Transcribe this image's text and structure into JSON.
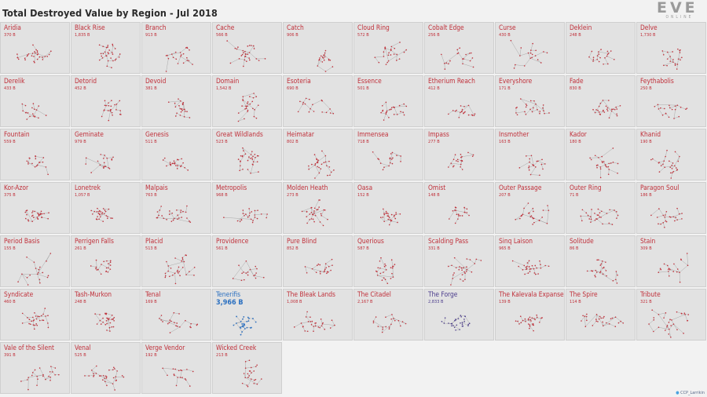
{
  "title": "Total Destroyed Value by Region - Jul 2018",
  "logo": {
    "word": "EVE",
    "sub": "ONLINE"
  },
  "credit": {
    "icon": "twitter-bird-icon",
    "text": "CCP_Larrikin"
  },
  "colors": {
    "default": "#c0303a",
    "tenerifis": "#2a6fc0",
    "the_forge": "#4b3c8c"
  },
  "chart_data": {
    "type": "small-multiples",
    "title": "Total Destroyed Value by Region - Jul 2018",
    "unit": "B",
    "regions": [
      {
        "name": "Aridia",
        "value": "370 B"
      },
      {
        "name": "Black Rise",
        "value": "1,835 B"
      },
      {
        "name": "Branch",
        "value": "913 B"
      },
      {
        "name": "Cache",
        "value": "566 B"
      },
      {
        "name": "Catch",
        "value": "906 B"
      },
      {
        "name": "Cloud Ring",
        "value": "572 B"
      },
      {
        "name": "Cobalt Edge",
        "value": "256 B"
      },
      {
        "name": "Curse",
        "value": "430 B"
      },
      {
        "name": "Deklein",
        "value": "248 B"
      },
      {
        "name": "Delve",
        "value": "1,730 B"
      },
      {
        "name": "Derelik",
        "value": "433 B"
      },
      {
        "name": "Detorid",
        "value": "452 B"
      },
      {
        "name": "Devoid",
        "value": "381 B"
      },
      {
        "name": "Domain",
        "value": "1,542 B"
      },
      {
        "name": "Esoteria",
        "value": "690 B"
      },
      {
        "name": "Essence",
        "value": "501 B"
      },
      {
        "name": "Etherium Reach",
        "value": "412 B"
      },
      {
        "name": "Everyshore",
        "value": "171 B"
      },
      {
        "name": "Fade",
        "value": "830 B"
      },
      {
        "name": "Feythabolis",
        "value": "250 B"
      },
      {
        "name": "Fountain",
        "value": "559 B"
      },
      {
        "name": "Geminate",
        "value": "979 B"
      },
      {
        "name": "Genesis",
        "value": "511 B"
      },
      {
        "name": "Great Wildlands",
        "value": "523 B"
      },
      {
        "name": "Heimatar",
        "value": "802 B"
      },
      {
        "name": "Immensea",
        "value": "718 B"
      },
      {
        "name": "Impass",
        "value": "277 B"
      },
      {
        "name": "Insmother",
        "value": "163 B"
      },
      {
        "name": "Kador",
        "value": "180 B"
      },
      {
        "name": "Khanid",
        "value": "190 B"
      },
      {
        "name": "Kor-Azor",
        "value": "375 B"
      },
      {
        "name": "Lonetrek",
        "value": "1,057 B"
      },
      {
        "name": "Malpais",
        "value": "763 B"
      },
      {
        "name": "Metropolis",
        "value": "968 B"
      },
      {
        "name": "Molden Heath",
        "value": "273 B"
      },
      {
        "name": "Oasa",
        "value": "152 B"
      },
      {
        "name": "Omist",
        "value": "148 B"
      },
      {
        "name": "Outer Passage",
        "value": "207 B"
      },
      {
        "name": "Outer Ring",
        "value": "71 B"
      },
      {
        "name": "Paragon Soul",
        "value": "186 B"
      },
      {
        "name": "Period Basis",
        "value": "155 B"
      },
      {
        "name": "Perrigen Falls",
        "value": "261 B"
      },
      {
        "name": "Placid",
        "value": "513 B"
      },
      {
        "name": "Providence",
        "value": "561 B"
      },
      {
        "name": "Pure Blind",
        "value": "852 B"
      },
      {
        "name": "Querious",
        "value": "587 B"
      },
      {
        "name": "Scalding Pass",
        "value": "331 B"
      },
      {
        "name": "Sinq Laison",
        "value": "965 B"
      },
      {
        "name": "Solitude",
        "value": "86 B"
      },
      {
        "name": "Stain",
        "value": "309 B"
      },
      {
        "name": "Syndicate",
        "value": "460 B"
      },
      {
        "name": "Tash-Murkon",
        "value": "248 B"
      },
      {
        "name": "Tenal",
        "value": "169 B"
      },
      {
        "name": "Tenerifis",
        "value": "3,966 B",
        "color": "#2a6fc0",
        "emphasis": true
      },
      {
        "name": "The Bleak Lands",
        "value": "1,008 B"
      },
      {
        "name": "The Citadel",
        "value": "2,167 B"
      },
      {
        "name": "The Forge",
        "value": "2,833 B",
        "color": "#4b3c8c"
      },
      {
        "name": "The Kalevala Expanse",
        "value": "139 B"
      },
      {
        "name": "The Spire",
        "value": "114 B"
      },
      {
        "name": "Tribute",
        "value": "321 B"
      },
      {
        "name": "Vale of the Silent",
        "value": "391 B"
      },
      {
        "name": "Venal",
        "value": "525 B"
      },
      {
        "name": "Verge Vendor",
        "value": "192 B"
      },
      {
        "name": "Wicked Creek",
        "value": "213 B"
      }
    ]
  }
}
